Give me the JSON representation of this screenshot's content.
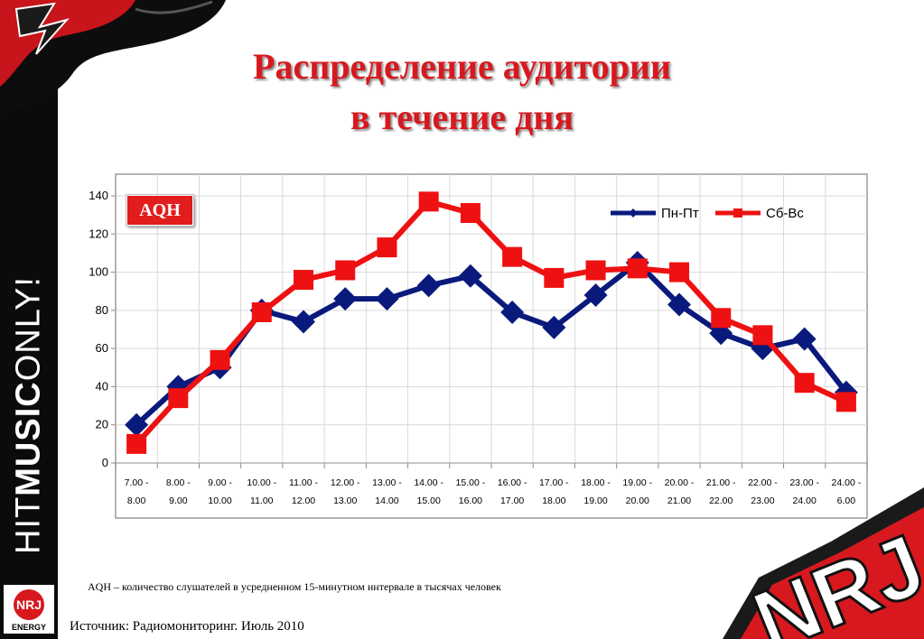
{
  "title": {
    "line1": "Распределение аудитории",
    "line2": "в течение дня"
  },
  "branding": {
    "vertical_text_thin": "HIT",
    "vertical_text_bold": "MUSIC",
    "vertical_text_end": "ONLY!",
    "badge_text": "NRJ",
    "badge_subtext": "ENERGY",
    "logo_text": "NRJ"
  },
  "badge": "AQH",
  "footnote": "AQH – количество слушателей в усредненном 15-минутном интервале в тысячах человек",
  "source": "Источник: Радиомониторинг. Июль 2010",
  "colors": {
    "series_weekday": "#0a1a7c",
    "series_weekend": "#ee1111",
    "accent_red": "#d7191f",
    "grid": "#d9d9d9"
  },
  "chart_data": {
    "type": "line",
    "categories": [
      [
        "7.00 -",
        "8.00"
      ],
      [
        "8.00 -",
        "9.00"
      ],
      [
        "9.00 -",
        "10.00"
      ],
      [
        "10.00 -",
        "11.00"
      ],
      [
        "11.00 -",
        "12.00"
      ],
      [
        "12.00 -",
        "13.00"
      ],
      [
        "13.00 -",
        "14.00"
      ],
      [
        "14.00 -",
        "15.00"
      ],
      [
        "15.00 -",
        "16.00"
      ],
      [
        "16.00 -",
        "17.00"
      ],
      [
        "17.00 -",
        "18.00"
      ],
      [
        "18.00 -",
        "19.00"
      ],
      [
        "19.00 -",
        "20.00"
      ],
      [
        "20.00 -",
        "21.00"
      ],
      [
        "21.00 -",
        "22.00"
      ],
      [
        "22.00 -",
        "23.00"
      ],
      [
        "23.00 -",
        "24.00"
      ],
      [
        "24.00 -",
        "6.00"
      ]
    ],
    "series": [
      {
        "name": "Пн-Пт",
        "values": [
          20,
          40,
          50,
          80,
          74,
          86,
          86,
          93,
          98,
          79,
          71,
          88,
          105,
          83,
          68,
          60,
          65,
          37
        ]
      },
      {
        "name": "Сб-Вс",
        "values": [
          10,
          34,
          54,
          79,
          96,
          101,
          113,
          137,
          131,
          108,
          97,
          101,
          102,
          100,
          76,
          67,
          42,
          32
        ]
      }
    ],
    "yticks": [
      0,
      20,
      40,
      60,
      80,
      100,
      120,
      140
    ],
    "ylim": [
      0,
      140
    ],
    "grid": true,
    "legend": "top-right",
    "xlabel": "",
    "ylabel": ""
  }
}
